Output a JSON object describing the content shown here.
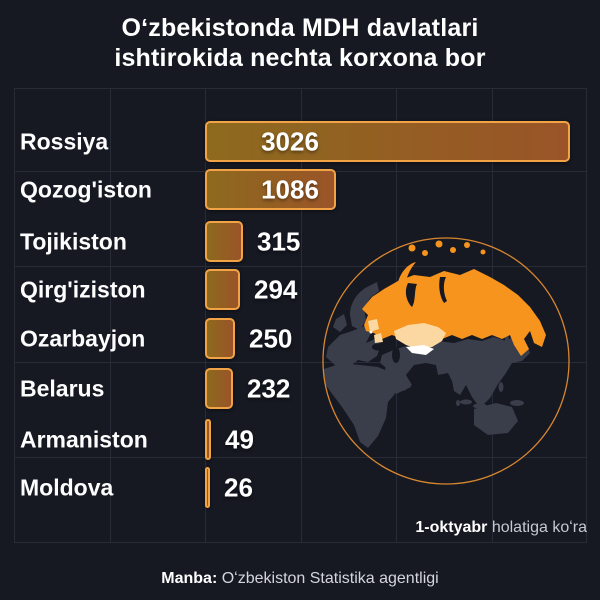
{
  "title": {
    "line1": "Oʻzbekistonda MDH davlatlari",
    "line2": "ishtirokida nechta korxona bor"
  },
  "chart_data": {
    "type": "bar",
    "orientation": "horizontal",
    "title": "Oʻzbekistonda MDH davlatlari ishtirokida nechta korxona bor",
    "categories": [
      "Rossiya",
      "Qozog'iston",
      "Tojikiston",
      "Qirg'iziston",
      "Ozarbayjon",
      "Belarus",
      "Armaniston",
      "Moldova"
    ],
    "values": [
      3026,
      1086,
      315,
      294,
      250,
      232,
      49,
      26
    ],
    "xlim": [
      0,
      3170
    ],
    "grid": true,
    "value_labels": "3026, 1086 inside bars; others right of bar",
    "bar_style": {
      "fill_gradient_start": "#8d6a1e",
      "fill_gradient_end": "#9a5428",
      "border": "#f1a346",
      "value_color": "#ffffff"
    }
  },
  "note": {
    "bold": "1-oktyabr",
    "regular": " holatiga koʻra"
  },
  "source": {
    "bold": "Manba:",
    "regular": " Oʻzbekiston Statistika agentligi"
  },
  "map": {
    "name": "eurasia-globe",
    "highlighted": "Rossiya and CIS region",
    "colors": {
      "land": "#3a3e4a",
      "cis_highlight": "#f7941d",
      "kazakhstan": "#fbd8a1",
      "uzbekistan": "#ffffff",
      "outline": "#d8872f",
      "ocean": "#161822"
    }
  },
  "colors": {
    "background": "#161822",
    "grid": "#282c38",
    "text": "#ffffff",
    "muted_text": "#c6c9d1"
  }
}
